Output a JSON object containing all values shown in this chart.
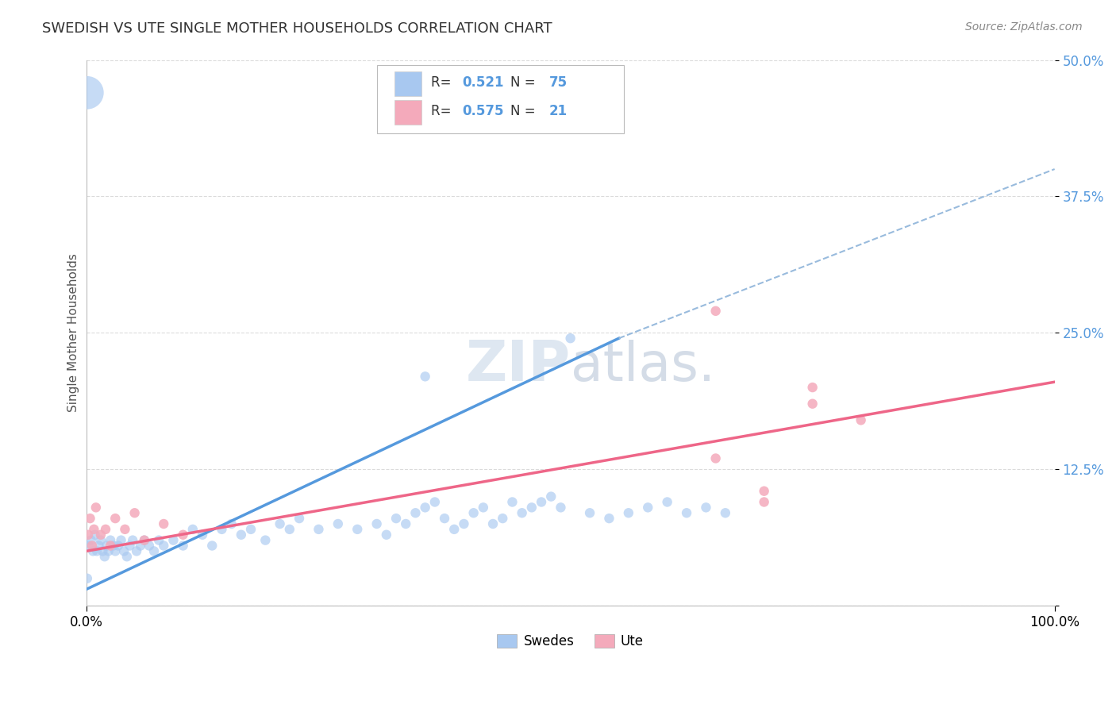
{
  "title": "SWEDISH VS UTE SINGLE MOTHER HOUSEHOLDS CORRELATION CHART",
  "source": "Source: ZipAtlas.com",
  "ylabel": "Single Mother Households",
  "blue_color": "#A8C8F0",
  "pink_color": "#F4AABB",
  "blue_line_color": "#5599DD",
  "pink_line_color": "#EE6688",
  "dashed_line_color": "#99BBDD",
  "watermark_color": "#C8D8E8",
  "background_color": "#FFFFFF",
  "grid_color": "#CCCCCC",
  "swedes_x": [
    0.3,
    0.5,
    0.7,
    0.9,
    1.1,
    1.3,
    1.5,
    1.7,
    1.9,
    2.1,
    2.3,
    2.5,
    2.8,
    3.0,
    3.3,
    3.6,
    3.9,
    4.2,
    4.5,
    4.8,
    5.2,
    5.6,
    6.0,
    6.5,
    7.0,
    7.5,
    8.0,
    9.0,
    10.0,
    11.0,
    12.0,
    13.0,
    14.0,
    15.0,
    16.0,
    17.0,
    18.5,
    20.0,
    21.0,
    22.0,
    24.0,
    26.0,
    28.0,
    30.0,
    31.0,
    32.0,
    33.0,
    34.0,
    35.0,
    36.0,
    37.0,
    38.0,
    39.0,
    40.0,
    41.0,
    42.0,
    43.0,
    44.0,
    45.0,
    46.0,
    47.0,
    48.0,
    49.0,
    50.0,
    52.0,
    54.0,
    56.0,
    58.0,
    60.0,
    62.0,
    64.0,
    66.0,
    0.1,
    0.1,
    35.0
  ],
  "swedes_y": [
    5.5,
    6.0,
    5.0,
    6.5,
    5.0,
    5.5,
    6.0,
    5.0,
    4.5,
    5.5,
    5.0,
    6.0,
    5.5,
    5.0,
    5.5,
    6.0,
    5.0,
    4.5,
    5.5,
    6.0,
    5.0,
    5.5,
    6.0,
    5.5,
    5.0,
    6.0,
    5.5,
    6.0,
    5.5,
    7.0,
    6.5,
    5.5,
    7.0,
    7.5,
    6.5,
    7.0,
    6.0,
    7.5,
    7.0,
    8.0,
    7.0,
    7.5,
    7.0,
    7.5,
    6.5,
    8.0,
    7.5,
    8.5,
    9.0,
    9.5,
    8.0,
    7.0,
    7.5,
    8.5,
    9.0,
    7.5,
    8.0,
    9.5,
    8.5,
    9.0,
    9.5,
    10.0,
    9.0,
    24.5,
    8.5,
    8.0,
    8.5,
    9.0,
    9.5,
    8.5,
    9.0,
    8.5,
    47.0,
    2.5,
    21.0
  ],
  "swedes_size": [
    80,
    80,
    80,
    80,
    80,
    80,
    80,
    80,
    80,
    80,
    80,
    80,
    80,
    80,
    80,
    80,
    80,
    80,
    80,
    80,
    80,
    80,
    80,
    80,
    80,
    80,
    80,
    80,
    80,
    80,
    80,
    80,
    80,
    80,
    80,
    80,
    80,
    80,
    80,
    80,
    80,
    80,
    80,
    80,
    80,
    80,
    80,
    80,
    80,
    80,
    80,
    80,
    80,
    80,
    80,
    80,
    80,
    80,
    80,
    80,
    80,
    80,
    80,
    80,
    80,
    80,
    80,
    80,
    80,
    80,
    80,
    80,
    900,
    80,
    80
  ],
  "ute_x": [
    0.2,
    0.4,
    0.6,
    0.8,
    1.0,
    1.5,
    2.0,
    2.5,
    3.0,
    4.0,
    5.0,
    6.0,
    8.0,
    10.0,
    65.0,
    70.0,
    75.0,
    80.0,
    75.0,
    70.0,
    65.0
  ],
  "ute_y": [
    6.5,
    8.0,
    5.5,
    7.0,
    9.0,
    6.5,
    7.0,
    5.5,
    8.0,
    7.0,
    8.5,
    6.0,
    7.5,
    6.5,
    13.5,
    10.5,
    18.5,
    17.0,
    20.0,
    9.5,
    27.0
  ],
  "ute_size": [
    80,
    80,
    80,
    80,
    80,
    80,
    80,
    80,
    80,
    80,
    80,
    80,
    80,
    80,
    80,
    80,
    80,
    80,
    80,
    80,
    80
  ],
  "swede_reg": [
    0.0,
    1.5,
    55.0,
    24.5
  ],
  "swede_dash": [
    55.0,
    24.5,
    100.0,
    40.0
  ],
  "ute_reg": [
    0.0,
    5.0,
    100.0,
    20.5
  ],
  "xlim": [
    0,
    100
  ],
  "ylim": [
    0,
    50
  ],
  "yticks": [
    0,
    12.5,
    25.0,
    37.5,
    50.0
  ],
  "ytick_labels": [
    "",
    "12.5%",
    "25.0%",
    "37.5%",
    "50.0%"
  ],
  "xticks": [
    0,
    100
  ],
  "xtick_labels": [
    "0.0%",
    "100.0%"
  ],
  "R_swedish": "0.521",
  "N_swedish": "75",
  "R_ute": "0.575",
  "N_ute": "21",
  "legend_bottom1": "Swedes",
  "legend_bottom2": "Ute"
}
